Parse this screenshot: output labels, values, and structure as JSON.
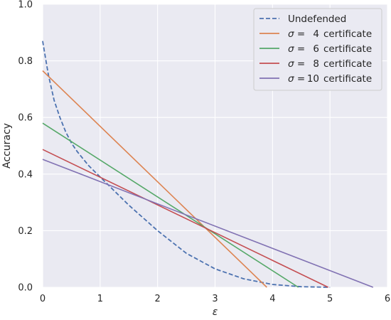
{
  "chart_data": {
    "type": "line",
    "title": "",
    "xlabel": "ε",
    "ylabel": "Accuracy",
    "xlim": [
      0,
      6
    ],
    "ylim": [
      0,
      1
    ],
    "xticks": [
      "0",
      "1",
      "2",
      "3",
      "4",
      "5",
      "6"
    ],
    "yticks": [
      "0.0",
      "0.2",
      "0.4",
      "0.6",
      "0.8",
      "1.0"
    ],
    "grid": true,
    "legend_position": "top-right",
    "series": [
      {
        "name": "Undefended",
        "style": "dashed",
        "color": "#4C72B0",
        "x": [
          0,
          0.05,
          0.1,
          0.2,
          0.3,
          0.4,
          0.5,
          0.6,
          0.8,
          1.0,
          1.2,
          1.5,
          2.0,
          2.5,
          3.0,
          3.5,
          4.0,
          4.5,
          5.0
        ],
        "y": [
          0.87,
          0.81,
          0.75,
          0.66,
          0.6,
          0.55,
          0.51,
          0.48,
          0.43,
          0.39,
          0.35,
          0.29,
          0.2,
          0.12,
          0.065,
          0.03,
          0.01,
          0.002,
          0.0
        ]
      },
      {
        "name_prefix": "σ =",
        "name_value": "4",
        "name_suffix": "certificate",
        "color": "#DD8452",
        "x": [
          0,
          3.9
        ],
        "y": [
          0.765,
          0.0
        ]
      },
      {
        "name_prefix": "σ =",
        "name_value": "6",
        "name_suffix": "certificate",
        "color": "#55A868",
        "x": [
          0,
          4.45
        ],
        "y": [
          0.58,
          0.0
        ]
      },
      {
        "name_prefix": "σ =",
        "name_value": "8",
        "name_suffix": "certificate",
        "color": "#C44E52",
        "x": [
          0,
          4.97
        ],
        "y": [
          0.487,
          0.0
        ]
      },
      {
        "name_prefix": "σ =",
        "name_value": "10",
        "name_suffix": "certificate",
        "color": "#8172B3",
        "x": [
          0,
          5.75
        ],
        "y": [
          0.452,
          0.0
        ]
      }
    ]
  },
  "style": {
    "plot_background": "#EAEAF2",
    "grid_color": "#FFFFFF"
  }
}
